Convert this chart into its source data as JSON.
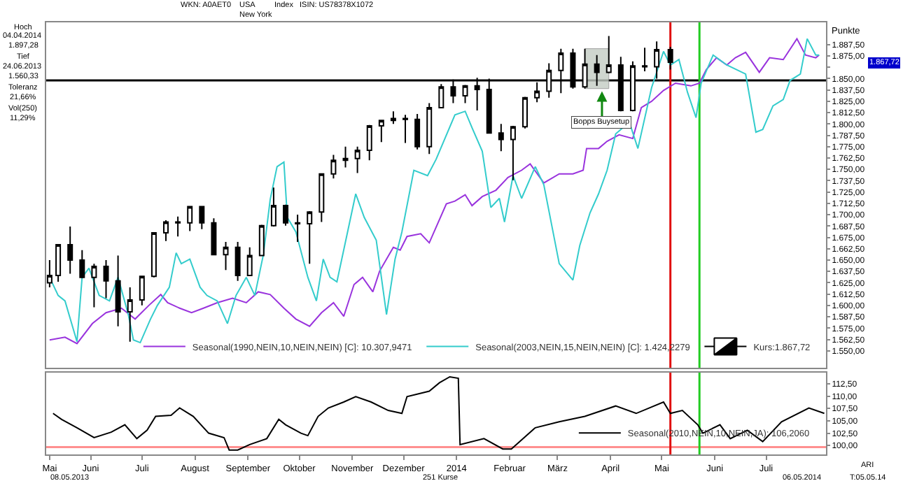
{
  "chart_data": [
    {
      "type": "candlestick",
      "ylabel": "Punkte",
      "series": [
        {
          "name": "Seasonal(1990,NEIN,10,NEIN,NEIN) [C]: 10.307,9471",
          "type": "line",
          "color": "#9933dd",
          "x": [
            "2013-05-08",
            "2013-05-17",
            "2013-05-24",
            "2013-06-02",
            "2013-06-10",
            "2013-06-19",
            "2013-06-27",
            "2013-07-05",
            "2013-07-12",
            "2013-07-16",
            "2013-07-23",
            "2013-07-30",
            "2013-08-06",
            "2013-08-14",
            "2013-08-23",
            "2013-08-31",
            "2013-09-07",
            "2013-09-14",
            "2013-09-22",
            "2013-09-29",
            "2013-10-07",
            "2013-10-14",
            "2013-10-21",
            "2013-10-27",
            "2013-11-02",
            "2013-11-07",
            "2013-11-13",
            "2013-11-17",
            "2013-11-25",
            "2013-11-29",
            "2013-12-03",
            "2013-12-11",
            "2013-12-16",
            "2013-12-26",
            "2013-12-31",
            "2014-01-06",
            "2014-01-10",
            "2014-01-16",
            "2014-01-24",
            "2014-01-31",
            "2014-02-08",
            "2014-02-13",
            "2014-02-21",
            "2014-03-02",
            "2014-03-10",
            "2014-03-16",
            "2014-03-18",
            "2014-03-25",
            "2014-03-30",
            "2014-04-06",
            "2014-04-14",
            "2014-04-19",
            "2014-04-25",
            "2014-05-02",
            "2014-05-09",
            "2014-05-18",
            "2014-05-23",
            "2014-05-27",
            "2014-06-02",
            "2014-06-08",
            "2014-06-13",
            "2014-06-19",
            "2014-06-27",
            "2014-07-03",
            "2014-07-11",
            "2014-07-19",
            "2014-07-24",
            "2014-07-30",
            "2014-08-01"
          ],
          "values": [
            1562,
            1565,
            1558,
            1580,
            1592,
            1597,
            1585,
            1600,
            1612,
            1603,
            1597,
            1592,
            1597,
            1603,
            1608,
            1603,
            1615,
            1612,
            1597,
            1585,
            1577,
            1592,
            1603,
            1588,
            1623,
            1631,
            1615,
            1638,
            1664,
            1661,
            1676,
            1679,
            1669,
            1712,
            1715,
            1722,
            1710,
            1720,
            1727,
            1741,
            1749,
            1756,
            1735,
            1745,
            1745,
            1749,
            1773,
            1773,
            1781,
            1788,
            1784,
            1818,
            1825,
            1837,
            1845,
            1842,
            1845,
            1860,
            1873,
            1865,
            1873,
            1879,
            1857,
            1873,
            1871,
            1894,
            1876,
            1873,
            1876
          ]
        },
        {
          "name": "Seasonal(2003,NEIN,15,NEIN,NEIN) [C]: 1.424,2279",
          "type": "line",
          "color": "#33cccc",
          "x": [
            "2013-05-08",
            "2013-05-13",
            "2013-05-17",
            "2013-05-24",
            "2013-05-27",
            "2013-05-31",
            "2013-06-06",
            "2013-06-12",
            "2013-06-17",
            "2013-06-23",
            "2013-06-26",
            "2013-06-30",
            "2013-07-06",
            "2013-07-10",
            "2013-07-17",
            "2013-07-21",
            "2013-07-24",
            "2013-07-29",
            "2013-08-04",
            "2013-08-08",
            "2013-08-14",
            "2013-08-20",
            "2013-08-25",
            "2013-08-31",
            "2013-09-05",
            "2013-09-10",
            "2013-09-14",
            "2013-09-18",
            "2013-09-22",
            "2013-09-24",
            "2013-09-29",
            "2013-10-06",
            "2013-10-11",
            "2013-10-15",
            "2013-10-19",
            "2013-10-23",
            "2013-11-03",
            "2013-11-08",
            "2013-11-15",
            "2013-11-21",
            "2013-11-26",
            "2013-11-30",
            "2013-12-07",
            "2013-12-15",
            "2013-12-20",
            "2013-12-31",
            "2014-01-06",
            "2014-01-10",
            "2014-01-16",
            "2014-01-21",
            "2014-01-26",
            "2014-01-29",
            "2014-02-03",
            "2014-02-08",
            "2014-02-16",
            "2014-02-21",
            "2014-03-02",
            "2014-03-10",
            "2014-03-14",
            "2014-03-20",
            "2014-03-25",
            "2014-03-30",
            "2014-04-04",
            "2014-04-12",
            "2014-04-17",
            "2014-04-25",
            "2014-05-02",
            "2014-05-06",
            "2014-05-11",
            "2014-05-16",
            "2014-05-21",
            "2014-05-24",
            "2014-05-31",
            "2014-06-08",
            "2014-06-19",
            "2014-06-25",
            "2014-06-29",
            "2014-07-05",
            "2014-07-11",
            "2014-07-15",
            "2014-07-21",
            "2014-07-25",
            "2014-07-30",
            "2014-08-01"
          ],
          "values": [
            1631,
            1611,
            1605,
            1560,
            1631,
            1641,
            1611,
            1605,
            1631,
            1590,
            1562,
            1559,
            1585,
            1600,
            1620,
            1658,
            1646,
            1651,
            1620,
            1611,
            1605,
            1580,
            1611,
            1631,
            1611,
            1656,
            1717,
            1753,
            1758,
            1697,
            1681,
            1631,
            1605,
            1651,
            1631,
            1626,
            1723,
            1697,
            1672,
            1590,
            1651,
            1681,
            1749,
            1743,
            1761,
            1810,
            1814,
            1796,
            1770,
            1708,
            1718,
            1692,
            1743,
            1718,
            1753,
            1733,
            1646,
            1628,
            1666,
            1702,
            1723,
            1749,
            1789,
            1802,
            1773,
            1840,
            1880,
            1865,
            1871,
            1835,
            1807,
            1845,
            1876,
            1865,
            1855,
            1791,
            1794,
            1820,
            1827,
            1848,
            1855,
            1894,
            1876,
            1876
          ]
        },
        {
          "name": "Kurs:1.867,72",
          "type": "candlestick",
          "color": "#000000",
          "x": [
            "2013-05-08",
            "2013-05-13",
            "2013-05-20",
            "2013-05-27",
            "2013-06-03",
            "2013-06-10",
            "2013-06-17",
            "2013-06-24",
            "2013-07-01",
            "2013-07-08",
            "2013-07-15",
            "2013-07-22",
            "2013-07-29",
            "2013-08-05",
            "2013-08-12",
            "2013-08-19",
            "2013-08-26",
            "2013-09-02",
            "2013-09-09",
            "2013-09-16",
            "2013-09-23",
            "2013-09-30",
            "2013-10-07",
            "2013-10-14",
            "2013-10-21",
            "2013-10-28",
            "2013-11-04",
            "2013-11-11",
            "2013-11-18",
            "2013-11-25",
            "2013-12-02",
            "2013-12-09",
            "2013-12-16",
            "2013-12-23",
            "2013-12-30",
            "2014-01-06",
            "2014-01-13",
            "2014-01-20",
            "2014-01-27",
            "2014-02-03",
            "2014-02-10",
            "2014-02-17",
            "2014-02-24",
            "2014-03-03",
            "2014-03-10",
            "2014-03-17",
            "2014-03-24",
            "2014-03-31",
            "2014-04-07",
            "2014-04-14",
            "2014-04-21",
            "2014-04-28",
            "2014-05-06"
          ],
          "ohlc": [
            [
              1625,
              1650,
              1620,
              1633
            ],
            [
              1633,
              1667,
              1626,
              1667
            ],
            [
              1667,
              1687,
              1635,
              1650
            ],
            [
              1650,
              1661,
              1630,
              1631
            ],
            [
              1631,
              1646,
              1598,
              1643
            ],
            [
              1643,
              1650,
              1608,
              1627
            ],
            [
              1627,
              1655,
              1577,
              1593
            ],
            [
              1593,
              1620,
              1560,
              1606
            ],
            [
              1606,
              1632,
              1600,
              1632
            ],
            [
              1632,
              1680,
              1631,
              1680
            ],
            [
              1680,
              1694,
              1671,
              1692
            ],
            [
              1692,
              1698,
              1676,
              1691
            ],
            [
              1691,
              1709,
              1682,
              1709
            ],
            [
              1709,
              1709,
              1684,
              1691
            ],
            [
              1691,
              1696,
              1656,
              1656
            ],
            [
              1656,
              1670,
              1639,
              1664
            ],
            [
              1664,
              1670,
              1627,
              1633
            ],
            [
              1633,
              1664,
              1633,
              1655
            ],
            [
              1655,
              1689,
              1655,
              1688
            ],
            [
              1688,
              1730,
              1687,
              1710
            ],
            [
              1710,
              1711,
              1688,
              1691
            ],
            [
              1691,
              1700,
              1670,
              1690
            ],
            [
              1690,
              1704,
              1646,
              1703
            ],
            [
              1703,
              1745,
              1692,
              1745
            ],
            [
              1745,
              1766,
              1740,
              1760
            ],
            [
              1760,
              1775,
              1752,
              1762
            ],
            [
              1762,
              1775,
              1746,
              1771
            ],
            [
              1771,
              1799,
              1760,
              1798
            ],
            [
              1798,
              1804,
              1780,
              1804
            ],
            [
              1804,
              1814,
              1800,
              1806
            ],
            [
              1806,
              1810,
              1779,
              1805
            ],
            [
              1805,
              1811,
              1772,
              1775
            ],
            [
              1775,
              1823,
              1767,
              1818
            ],
            [
              1818,
              1844,
              1818,
              1841
            ],
            [
              1841,
              1849,
              1823,
              1831
            ],
            [
              1831,
              1843,
              1823,
              1842
            ],
            [
              1842,
              1851,
              1815,
              1838
            ],
            [
              1838,
              1850,
              1790,
              1790
            ],
            [
              1790,
              1800,
              1770,
              1783
            ],
            [
              1783,
              1798,
              1738,
              1797
            ],
            [
              1797,
              1830,
              1795,
              1829
            ],
            [
              1829,
              1846,
              1824,
              1836
            ],
            [
              1836,
              1867,
              1829,
              1859
            ],
            [
              1859,
              1883,
              1834,
              1878
            ],
            [
              1878,
              1883,
              1839,
              1841
            ],
            [
              1841,
              1883,
              1839,
              1866
            ],
            [
              1866,
              1876,
              1842,
              1857
            ],
            [
              1857,
              1897,
              1856,
              1865
            ],
            [
              1865,
              1874,
              1814,
              1815
            ],
            [
              1815,
              1869,
              1814,
              1864
            ],
            [
              1864,
              1884,
              1858,
              1863
            ],
            [
              1863,
              1891,
              1850,
              1882
            ],
            [
              1882,
              1885,
              1860,
              1868
            ]
          ]
        }
      ],
      "xlim": [
        "2013-05-06",
        "2014-08-05"
      ],
      "ylim": [
        1531,
        1912
      ],
      "yticks": [
        {
          "value": 1550,
          "label": "1.550,00"
        },
        {
          "value": 1562.5,
          "label": "1.562,50"
        },
        {
          "value": 1575,
          "label": "1.575,00"
        },
        {
          "value": 1587.5,
          "label": "1.587,50"
        },
        {
          "value": 1600,
          "label": "1.600,00"
        },
        {
          "value": 1612.5,
          "label": "1.612,50"
        },
        {
          "value": 1625,
          "label": "1.625,00"
        },
        {
          "value": 1637.5,
          "label": "1.637,50"
        },
        {
          "value": 1650,
          "label": "1.650,00"
        },
        {
          "value": 1662.5,
          "label": "1.662,50"
        },
        {
          "value": 1675,
          "label": "1.675,00"
        },
        {
          "value": 1687.5,
          "label": "1.687,50"
        },
        {
          "value": 1700,
          "label": "1.700,00"
        },
        {
          "value": 1712.5,
          "label": "1.712,50"
        },
        {
          "value": 1725,
          "label": "1.725,00"
        },
        {
          "value": 1737.5,
          "label": "1.737,50"
        },
        {
          "value": 1750,
          "label": "1.750,00"
        },
        {
          "value": 1762.5,
          "label": "1.762,50"
        },
        {
          "value": 1775,
          "label": "1.775,00"
        },
        {
          "value": 1787.5,
          "label": "1.787,50"
        },
        {
          "value": 1800,
          "label": "1.800,00"
        },
        {
          "value": 1812.5,
          "label": "1.812,50"
        },
        {
          "value": 1825,
          "label": "1.825,00"
        },
        {
          "value": 1837.5,
          "label": "1.837,50"
        },
        {
          "value": 1850,
          "label": "1.850,00"
        },
        {
          "value": 1862.5,
          "label": null
        },
        {
          "value": 1875,
          "label": "1.875,00"
        },
        {
          "value": 1887.5,
          "label": "1.887,50"
        }
      ],
      "tick_labels": "y",
      "legend": "bottom right",
      "ref_lines": [
        {
          "axis": "y",
          "value": 1848,
          "color": "#000000"
        },
        {
          "axis": "x",
          "value": "2014-05-06",
          "color": "#e01010"
        },
        {
          "axis": "x",
          "value": "2014-05-23",
          "color": "#22cc22"
        }
      ],
      "bands": [
        {
          "axis": "x",
          "from": "2014-03-17",
          "to": "2014-03-31",
          "color": "#c4ccc4"
        }
      ],
      "annotations": [
        "WKN: A0AET0",
        "USA",
        "New York",
        "Index",
        "ISIN: US78378X1072",
        "Hoch",
        "04.04.2014",
        "1.897,28",
        "Tief",
        "24.06.2013",
        "1.560,33",
        "Toleranz",
        "21,66%",
        "Vol(250)",
        "11,29%",
        {
          "text": "Bopps Buysetup",
          "x": "2014-03-27",
          "y": 1836
        },
        "1.867,72"
      ]
    },
    {
      "type": "line",
      "series": [
        {
          "name": "Seasonal(2010,NEIN,10,NEIN,JA): 106,2060",
          "color": "#000000",
          "x": [
            "2013-05-10",
            "2013-05-15",
            "2013-05-24",
            "2013-06-03",
            "2013-06-13",
            "2013-06-21",
            "2013-06-28",
            "2013-07-04",
            "2013-07-09",
            "2013-07-18",
            "2013-07-23",
            "2013-07-31",
            "2013-08-09",
            "2013-08-18",
            "2013-08-21",
            "2013-08-26",
            "2013-09-02",
            "2013-09-12",
            "2013-09-19",
            "2013-09-23",
            "2013-10-02",
            "2013-10-06",
            "2013-10-12",
            "2013-10-18",
            "2013-10-27",
            "2013-11-03",
            "2013-11-12",
            "2013-11-22",
            "2013-11-30",
            "2013-12-03",
            "2013-12-16",
            "2013-12-22",
            "2013-12-28",
            "2014-01-02",
            "2014-01-03",
            "2014-01-17",
            "2014-01-28",
            "2014-02-02",
            "2014-02-16",
            "2014-03-02",
            "2014-03-17",
            "2014-04-04",
            "2014-04-16",
            "2014-05-02",
            "2014-05-06",
            "2014-05-13",
            "2014-05-22",
            "2014-05-25",
            "2014-06-04",
            "2014-06-10",
            "2014-06-20",
            "2014-06-29",
            "2014-07-10",
            "2014-07-26",
            "2014-08-04"
          ],
          "values": [
            106.5,
            105.3,
            103.6,
            101.6,
            102.7,
            104.2,
            101.4,
            103.1,
            105.9,
            106.1,
            107.6,
            105.9,
            102.5,
            101.6,
            99.1,
            99.1,
            100.2,
            101.4,
            105.3,
            104.2,
            102.5,
            102,
            105.9,
            107.6,
            108.8,
            109.9,
            108.8,
            107.1,
            106.5,
            109.9,
            111,
            112.7,
            113.9,
            113.6,
            100.2,
            101.4,
            99.3,
            99.3,
            103.6,
            104.8,
            105.9,
            108,
            106.5,
            108.8,
            106.5,
            107.1,
            104.2,
            102.5,
            104.2,
            101.4,
            103.1,
            100.8,
            104.8,
            107.6,
            106.5
          ]
        }
      ],
      "xlim": [
        "2013-05-06",
        "2014-08-05"
      ],
      "xticks": [
        {
          "value": "2013-05-08",
          "label": "Mai"
        },
        {
          "value": "2013-06-01",
          "label": "Juni"
        },
        {
          "value": "2013-07-01",
          "label": "Juli"
        },
        {
          "value": "2013-08-01",
          "label": "August"
        },
        {
          "value": "2013-09-01",
          "label": "September"
        },
        {
          "value": "2013-10-01",
          "label": "Oktober"
        },
        {
          "value": "2013-11-01",
          "label": "November"
        },
        {
          "value": "2013-12-01",
          "label": "Dezember"
        },
        {
          "value": "2014-01-01",
          "label": "2014"
        },
        {
          "value": "2014-02-01",
          "label": "Februar"
        },
        {
          "value": "2014-03-01",
          "label": "März"
        },
        {
          "value": "2014-04-01",
          "label": "April"
        },
        {
          "value": "2014-05-01",
          "label": "Mai"
        },
        {
          "value": "2014-06-01",
          "label": "Juni"
        },
        {
          "value": "2014-07-01",
          "label": "Juli"
        }
      ],
      "ylim": [
        98.2,
        114.8
      ],
      "yticks": [
        {
          "value": 100,
          "label": "100,00"
        },
        {
          "value": 102.5,
          "label": "102,50"
        },
        {
          "value": 105,
          "label": "105,00"
        },
        {
          "value": 107.5,
          "label": "107,50"
        },
        {
          "value": 110,
          "label": "110,00"
        },
        {
          "value": 112.5,
          "label": "112,50"
        }
      ],
      "legend": "bottom right",
      "ref_lines": [
        {
          "axis": "y",
          "value": 99.7,
          "color": "#ff9090"
        },
        {
          "axis": "x",
          "value": "2014-05-06",
          "color": "#e01010"
        },
        {
          "axis": "x",
          "value": "2014-05-23",
          "color": "#22cc22"
        }
      ],
      "annotations": [
        "08.05.2013",
        "251 Kurse",
        "06.05.2014",
        "ARI",
        "T:05.05.14"
      ]
    }
  ]
}
